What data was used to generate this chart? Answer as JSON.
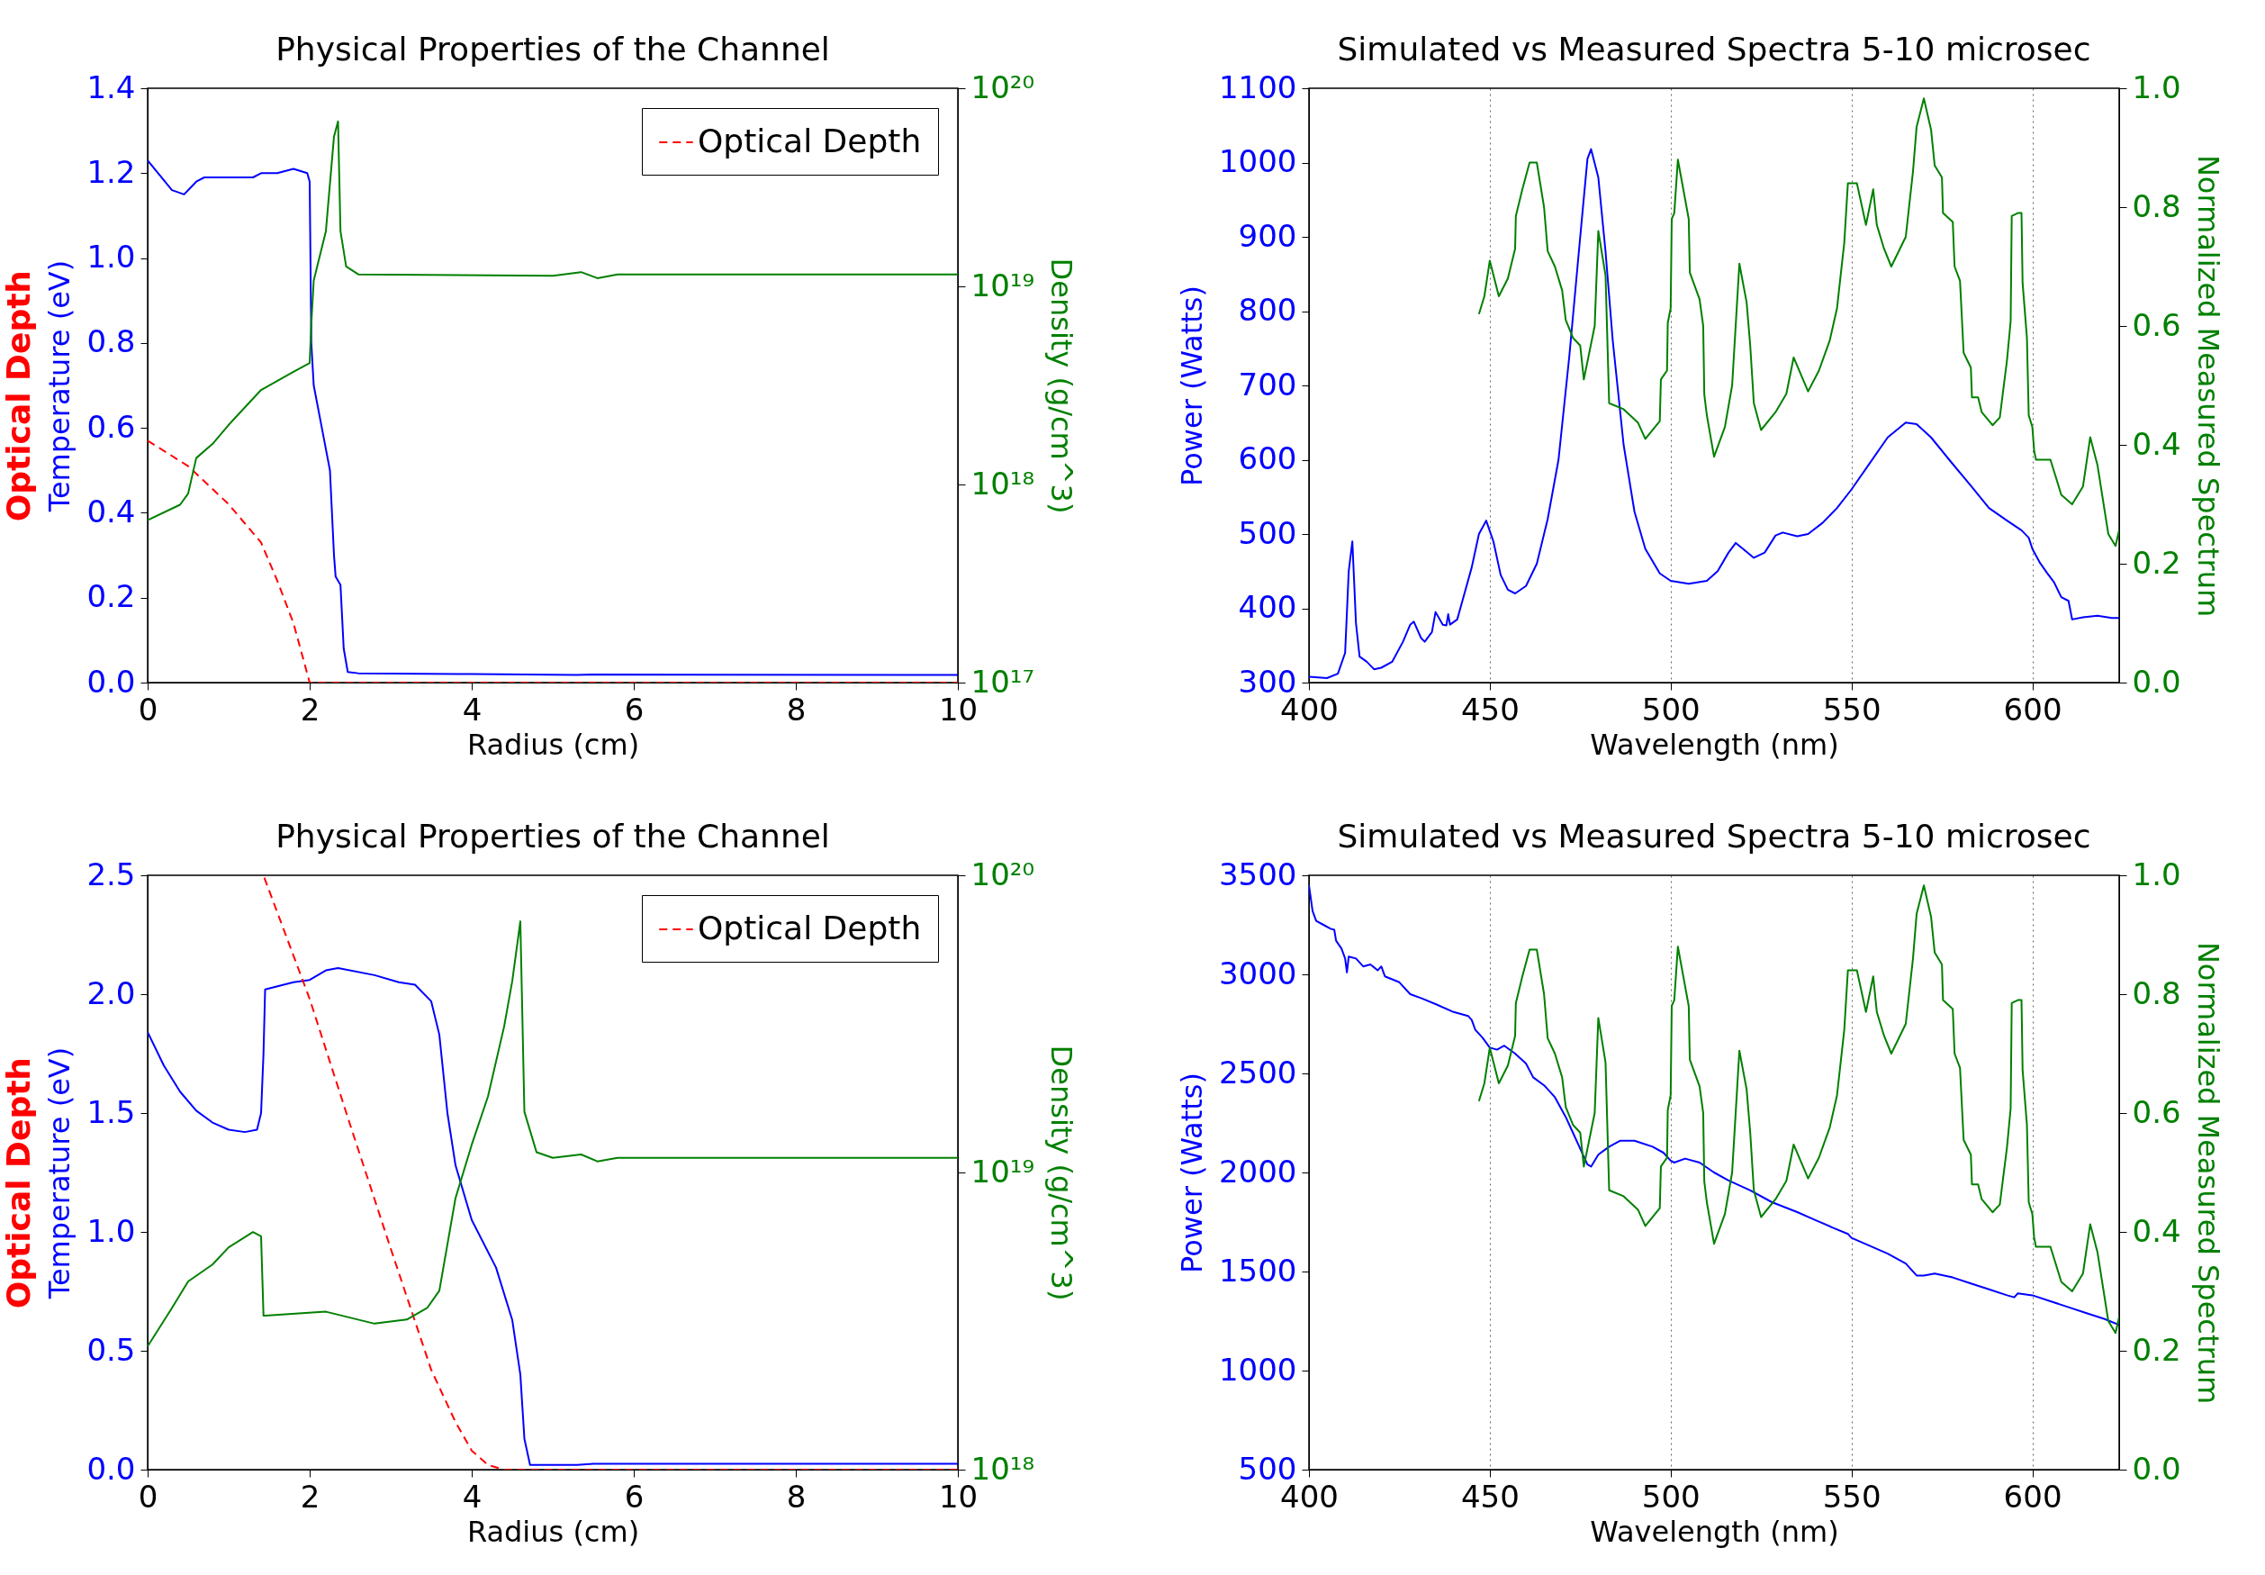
{
  "chart_data": [
    {
      "type": "line",
      "title": "Physical Properties of the Channel",
      "xlabel": "Radius (cm)",
      "ylabel": "Temperature (eV)",
      "y2label": "Density (g/cm^3)",
      "annotations": [
        "Optical Depth"
      ],
      "xlim": [
        0,
        10
      ],
      "xticks": [
        0,
        2,
        4,
        6,
        8,
        10
      ],
      "ylim": [
        0,
        1.4
      ],
      "yticks": [
        {
          "value": 0,
          "label": "0.0"
        },
        {
          "value": 0.2,
          "label": "0.2"
        },
        {
          "value": 0.4,
          "label": "0.4"
        },
        {
          "value": 0.6,
          "label": "0.6"
        },
        {
          "value": 0.8,
          "label": "0.8"
        },
        {
          "value": 1.0,
          "label": "1.0"
        },
        {
          "value": 1.2,
          "label": "1.2"
        },
        {
          "value": 1.4,
          "label": "1.4"
        }
      ],
      "y2lim": [
        1e+17,
        1e+20
      ],
      "y2ticks": [
        {
          "value": 1e+17,
          "label": "10¹⁷"
        },
        {
          "value": 1e+18,
          "label": "10¹⁸"
        },
        {
          "value": 1e+19,
          "label": "10¹⁹"
        },
        {
          "value": 1e+20,
          "label": "10²⁰"
        }
      ],
      "log": "y2",
      "legend": "top right",
      "series": [
        {
          "color": "#0000ff",
          "x": [
            0,
            0.3,
            0.45,
            0.6,
            0.7,
            1.0,
            1.3,
            1.4,
            1.6,
            1.8,
            1.97,
            2.0,
            2.02,
            2.05,
            2.15,
            2.25,
            2.3,
            2.32,
            2.38,
            2.42,
            2.47,
            2.6,
            4,
            5.3,
            5.5,
            10
          ],
          "values": [
            1.23,
            1.16,
            1.15,
            1.18,
            1.19,
            1.19,
            1.19,
            1.2,
            1.2,
            1.21,
            1.2,
            1.18,
            0.8,
            0.7,
            0.6,
            0.5,
            0.3,
            0.25,
            0.23,
            0.08,
            0.025,
            0.022,
            0.02,
            0.018,
            0.019,
            0.018
          ]
        },
        {
          "name": "Optical Depth",
          "color": "#ff0000",
          "line_style": "dashed",
          "x": [
            0,
            0.5,
            1.0,
            1.4,
            1.6,
            1.8,
            2.0,
            10
          ],
          "values": [
            0.57,
            0.51,
            0.42,
            0.33,
            0.24,
            0.14,
            0.0,
            0.0
          ]
        },
        {
          "color": "#008000",
          "axis": "y2",
          "x": [
            0,
            0.4,
            0.5,
            0.6,
            0.8,
            1.0,
            1.4,
            1.8,
            2.0,
            2.02,
            2.05,
            2.2,
            2.3,
            2.35,
            2.38,
            2.45,
            2.6,
            5.0,
            5.35,
            5.55,
            5.8,
            10
          ],
          "values": [
            6.6e+17,
            7.9e+17,
            9e+17,
            1.36e+18,
            1.6e+18,
            2e+18,
            3e+18,
            3.7e+18,
            4.1e+18,
            6.5e+18,
            1.07e+19,
            1.9e+19,
            5.7e+19,
            6.8e+19,
            1.9e+19,
            1.26e+19,
            1.15e+19,
            1.13e+19,
            1.18e+19,
            1.1e+19,
            1.15e+19,
            1.15e+19
          ]
        }
      ]
    },
    {
      "type": "line",
      "title": "Simulated vs Measured Spectra 5-10 microsec",
      "xlabel": "Wavelength (nm)",
      "ylabel": "Power (Watts)",
      "y2label": "Normalized Measured Spectrum",
      "grid": "x",
      "xlim": [
        400,
        624
      ],
      "xticks": [
        400,
        450,
        500,
        550,
        600
      ],
      "ylim": [
        300,
        1100
      ],
      "yticks": [
        300,
        400,
        500,
        600,
        700,
        800,
        900,
        1000,
        1100
      ],
      "y2lim": [
        0,
        1
      ],
      "y2ticks": [
        {
          "value": 0,
          "label": "0.0"
        },
        {
          "value": 0.2,
          "label": "0.2"
        },
        {
          "value": 0.4,
          "label": "0.4"
        },
        {
          "value": 0.6,
          "label": "0.6"
        },
        {
          "value": 0.8,
          "label": "0.8"
        },
        {
          "value": 1,
          "label": "1.0"
        }
      ],
      "series": [
        {
          "color": "#0000ff",
          "x": [
            400,
            405,
            408,
            410,
            411,
            412,
            413,
            414,
            416,
            418,
            420,
            423,
            426,
            428,
            429,
            431,
            432,
            434,
            435,
            437,
            438,
            438.5,
            439,
            441,
            443,
            445,
            447,
            449,
            451,
            453,
            455,
            457,
            460,
            463,
            466,
            469,
            472,
            475,
            477,
            478,
            480,
            482,
            484,
            487,
            490,
            493,
            497,
            500,
            505,
            510,
            513,
            516,
            518,
            520,
            523,
            526,
            529,
            531,
            535,
            538,
            542,
            546,
            550,
            555,
            560,
            565,
            568,
            572,
            577,
            583,
            588,
            593,
            597,
            599,
            600,
            602,
            604,
            606,
            608,
            610,
            611,
            614,
            618,
            622,
            624
          ],
          "values": [
            308,
            306,
            312,
            340,
            450,
            490,
            380,
            335,
            328,
            318,
            320,
            328,
            355,
            378,
            382,
            360,
            355,
            368,
            395,
            378,
            377,
            392,
            378,
            385,
            420,
            455,
            500,
            518,
            490,
            445,
            425,
            420,
            430,
            460,
            520,
            600,
            740,
            900,
            1005,
            1018,
            980,
            880,
            760,
            620,
            530,
            480,
            447,
            437,
            433,
            437,
            450,
            475,
            488,
            480,
            468,
            475,
            498,
            502,
            497,
            500,
            515,
            535,
            560,
            595,
            630,
            650,
            648,
            630,
            600,
            565,
            535,
            518,
            505,
            495,
            480,
            462,
            448,
            435,
            415,
            410,
            385,
            388,
            390,
            387,
            387
          ]
        },
        {
          "color": "#008000",
          "axis": "y2",
          "x": [
            447,
            448.5,
            450,
            452.5,
            455,
            457,
            457.2,
            459,
            461,
            463,
            465,
            466,
            468,
            470,
            471,
            473,
            475,
            476,
            479,
            480,
            482,
            483,
            487,
            491,
            493,
            497,
            497.3,
            499,
            499.2,
            500,
            500.3,
            501,
            502,
            505,
            505.3,
            508,
            509,
            509.3,
            510,
            512,
            515,
            517,
            519,
            521,
            522,
            523,
            525,
            529,
            532,
            534,
            538,
            541,
            544,
            546,
            548,
            549,
            551.5,
            554,
            556,
            557,
            559,
            561,
            565,
            567,
            568,
            570,
            572,
            573,
            575,
            575.3,
            578,
            578.5,
            580,
            581,
            583,
            583.3,
            585,
            586,
            589,
            591,
            593,
            594,
            594.3,
            596,
            597,
            597.3,
            598.5,
            599,
            600,
            600.5,
            601,
            605,
            608,
            611,
            614,
            616,
            618,
            621,
            623,
            624
          ],
          "values": [
            0.62,
            0.65,
            0.71,
            0.65,
            0.68,
            0.73,
            0.785,
            0.83,
            0.875,
            0.875,
            0.8,
            0.726,
            0.7,
            0.66,
            0.61,
            0.58,
            0.567,
            0.51,
            0.6,
            0.76,
            0.685,
            0.47,
            0.46,
            0.437,
            0.41,
            0.44,
            0.51,
            0.525,
            0.605,
            0.63,
            0.78,
            0.79,
            0.88,
            0.78,
            0.69,
            0.645,
            0.6,
            0.485,
            0.45,
            0.38,
            0.43,
            0.5,
            0.705,
            0.64,
            0.567,
            0.47,
            0.425,
            0.455,
            0.486,
            0.547,
            0.49,
            0.525,
            0.576,
            0.63,
            0.74,
            0.84,
            0.84,
            0.77,
            0.83,
            0.77,
            0.73,
            0.7,
            0.75,
            0.86,
            0.935,
            0.983,
            0.93,
            0.87,
            0.85,
            0.79,
            0.775,
            0.7,
            0.676,
            0.555,
            0.53,
            0.48,
            0.48,
            0.455,
            0.433,
            0.446,
            0.543,
            0.608,
            0.785,
            0.79,
            0.79,
            0.673,
            0.58,
            0.45,
            0.43,
            0.39,
            0.375,
            0.375,
            0.316,
            0.3,
            0.33,
            0.413,
            0.366,
            0.25,
            0.23,
            0.257
          ]
        }
      ]
    },
    {
      "type": "line",
      "title": "Physical Properties of the Channel",
      "xlabel": "Radius (cm)",
      "ylabel": "Temperature (eV)",
      "y2label": "Density (g/cm^3)",
      "annotations": [
        "Optical Depth"
      ],
      "xlim": [
        0,
        10
      ],
      "xticks": [
        0,
        2,
        4,
        6,
        8,
        10
      ],
      "ylim": [
        0,
        2.5
      ],
      "yticks": [
        {
          "value": 0,
          "label": "0.0"
        },
        {
          "value": 0.5,
          "label": "0.5"
        },
        {
          "value": 1.0,
          "label": "1.0"
        },
        {
          "value": 1.5,
          "label": "1.5"
        },
        {
          "value": 2.0,
          "label": "2.0"
        },
        {
          "value": 2.5,
          "label": "2.5"
        }
      ],
      "y2lim": [
        1e+18,
        1e+20
      ],
      "y2ticks": [
        {
          "value": 1e+18,
          "label": "10¹⁸"
        },
        {
          "value": 1e+19,
          "label": "10¹⁹"
        },
        {
          "value": 1e+20,
          "label": "10²⁰"
        }
      ],
      "log": "y2",
      "legend": "top right",
      "series": [
        {
          "color": "#0000ff",
          "x": [
            0,
            0.2,
            0.4,
            0.6,
            0.8,
            1.0,
            1.2,
            1.35,
            1.4,
            1.43,
            1.45,
            1.8,
            2.0,
            2.2,
            2.35,
            2.8,
            3.1,
            3.3,
            3.5,
            3.6,
            3.7,
            3.8,
            4.0,
            4.3,
            4.5,
            4.6,
            4.65,
            4.72,
            5.3,
            5.5,
            10
          ],
          "values": [
            1.84,
            1.7,
            1.59,
            1.51,
            1.46,
            1.43,
            1.42,
            1.43,
            1.5,
            1.75,
            2.02,
            2.05,
            2.06,
            2.1,
            2.11,
            2.08,
            2.05,
            2.04,
            1.97,
            1.83,
            1.5,
            1.28,
            1.05,
            0.85,
            0.63,
            0.4,
            0.13,
            0.02,
            0.02,
            0.025,
            0.025
          ]
        },
        {
          "name": "Optical Depth",
          "color": "#ff0000",
          "line_style": "dashed",
          "x": [
            1.44,
            2.0,
            2.5,
            3.0,
            3.5,
            3.8,
            4.0,
            4.2,
            4.4,
            10
          ],
          "values": [
            2.49,
            1.98,
            1.45,
            0.93,
            0.42,
            0.2,
            0.08,
            0.02,
            0.0,
            0.0
          ]
        },
        {
          "color": "#008000",
          "axis": "y2",
          "x": [
            0,
            0.3,
            0.5,
            0.8,
            1.0,
            1.3,
            1.4,
            1.43,
            1.45,
            2.2,
            2.8,
            3.2,
            3.45,
            3.6,
            3.8,
            4.0,
            4.2,
            4.4,
            4.5,
            4.6,
            4.65,
            4.8,
            5.0,
            5.35,
            5.55,
            5.8,
            10
          ],
          "values": [
            2.6e+18,
            3.5e+18,
            4.3e+18,
            4.9e+18,
            5.6e+18,
            6.3e+18,
            6.1e+18,
            3.3e+18,
            3.3e+18,
            3.4e+18,
            3.1e+18,
            3.2e+18,
            3.5e+18,
            4e+18,
            8.2e+18,
            1.24e+19,
            1.8e+19,
            3.1e+19,
            4.4e+19,
            7e+19,
            1.6e+19,
            1.17e+19,
            1.12e+19,
            1.15e+19,
            1.09e+19,
            1.12e+19,
            1.12e+19
          ]
        }
      ]
    },
    {
      "type": "line",
      "title": "Simulated vs Measured Spectra 5-10 microsec",
      "xlabel": "Wavelength (nm)",
      "ylabel": "Power (Watts)",
      "y2label": "Normalized Measured Spectrum",
      "grid": "x",
      "xlim": [
        400,
        624
      ],
      "xticks": [
        400,
        450,
        500,
        550,
        600
      ],
      "ylim": [
        500,
        3500
      ],
      "yticks": [
        500,
        1000,
        1500,
        2000,
        2500,
        3000,
        3500
      ],
      "y2lim": [
        0,
        1
      ],
      "y2ticks": [
        {
          "value": 0,
          "label": "0.0"
        },
        {
          "value": 0.2,
          "label": "0.2"
        },
        {
          "value": 0.4,
          "label": "0.4"
        },
        {
          "value": 0.6,
          "label": "0.6"
        },
        {
          "value": 0.8,
          "label": "0.8"
        },
        {
          "value": 1,
          "label": "1.0"
        }
      ],
      "series": [
        {
          "color": "#0000ff",
          "x": [
            400,
            401,
            402,
            404,
            406,
            407,
            407.5,
            409,
            410,
            410.5,
            411,
            413,
            415,
            417,
            419,
            420,
            421,
            425,
            428,
            431,
            435,
            440,
            444,
            445,
            446,
            448,
            450,
            452,
            454,
            457,
            460,
            462,
            465,
            468,
            471,
            473,
            475,
            477,
            478,
            480,
            483,
            486,
            490,
            495,
            498,
            500,
            501,
            504,
            508,
            512,
            516,
            522,
            528,
            535,
            540,
            545,
            549,
            550,
            555,
            560,
            565,
            568,
            570,
            573,
            578,
            583,
            588,
            593,
            595,
            596,
            600,
            605,
            610,
            615,
            620,
            624
          ],
          "values": [
            3450,
            3320,
            3270,
            3250,
            3230,
            3225,
            3170,
            3130,
            3080,
            3010,
            3090,
            3080,
            3040,
            3050,
            3020,
            3040,
            2990,
            2960,
            2900,
            2880,
            2850,
            2810,
            2790,
            2770,
            2720,
            2680,
            2630,
            2620,
            2640,
            2600,
            2550,
            2480,
            2440,
            2380,
            2280,
            2200,
            2120,
            2040,
            2030,
            2090,
            2130,
            2160,
            2160,
            2130,
            2100,
            2060,
            2050,
            2070,
            2050,
            2000,
            1960,
            1910,
            1850,
            1800,
            1760,
            1720,
            1690,
            1670,
            1630,
            1590,
            1540,
            1480,
            1480,
            1490,
            1470,
            1440,
            1410,
            1380,
            1370,
            1390,
            1380,
            1350,
            1320,
            1290,
            1260,
            1230
          ]
        },
        {
          "color": "#008000",
          "axis": "y2",
          "x": [
            447,
            448.5,
            450,
            452.5,
            455,
            457,
            457.2,
            459,
            461,
            463,
            465,
            466,
            468,
            470,
            471,
            473,
            475,
            476,
            479,
            480,
            482,
            483,
            487,
            491,
            493,
            497,
            497.3,
            499,
            499.2,
            500,
            500.3,
            501,
            502,
            505,
            505.3,
            508,
            509,
            509.3,
            510,
            512,
            515,
            517,
            519,
            521,
            522,
            523,
            525,
            529,
            532,
            534,
            538,
            541,
            544,
            546,
            548,
            549,
            551.5,
            554,
            556,
            557,
            559,
            561,
            565,
            567,
            568,
            570,
            572,
            573,
            575,
            575.3,
            578,
            578.5,
            580,
            581,
            583,
            583.3,
            585,
            586,
            589,
            591,
            593,
            594,
            594.3,
            596,
            597,
            597.3,
            598.5,
            599,
            600,
            600.5,
            601,
            605,
            608,
            611,
            614,
            616,
            618,
            621,
            623,
            624
          ],
          "values": [
            0.62,
            0.65,
            0.71,
            0.65,
            0.68,
            0.73,
            0.785,
            0.83,
            0.875,
            0.875,
            0.8,
            0.726,
            0.7,
            0.66,
            0.61,
            0.58,
            0.567,
            0.51,
            0.6,
            0.76,
            0.685,
            0.47,
            0.46,
            0.437,
            0.41,
            0.44,
            0.51,
            0.525,
            0.605,
            0.63,
            0.78,
            0.79,
            0.88,
            0.78,
            0.69,
            0.645,
            0.6,
            0.485,
            0.45,
            0.38,
            0.43,
            0.5,
            0.705,
            0.64,
            0.567,
            0.47,
            0.425,
            0.455,
            0.486,
            0.547,
            0.49,
            0.525,
            0.576,
            0.63,
            0.74,
            0.84,
            0.84,
            0.77,
            0.83,
            0.77,
            0.73,
            0.7,
            0.75,
            0.86,
            0.935,
            0.983,
            0.93,
            0.87,
            0.85,
            0.79,
            0.775,
            0.7,
            0.676,
            0.555,
            0.53,
            0.48,
            0.48,
            0.455,
            0.433,
            0.446,
            0.543,
            0.608,
            0.785,
            0.79,
            0.79,
            0.673,
            0.58,
            0.45,
            0.43,
            0.39,
            0.375,
            0.375,
            0.316,
            0.3,
            0.33,
            0.413,
            0.366,
            0.25,
            0.23,
            0.257
          ]
        }
      ]
    }
  ]
}
